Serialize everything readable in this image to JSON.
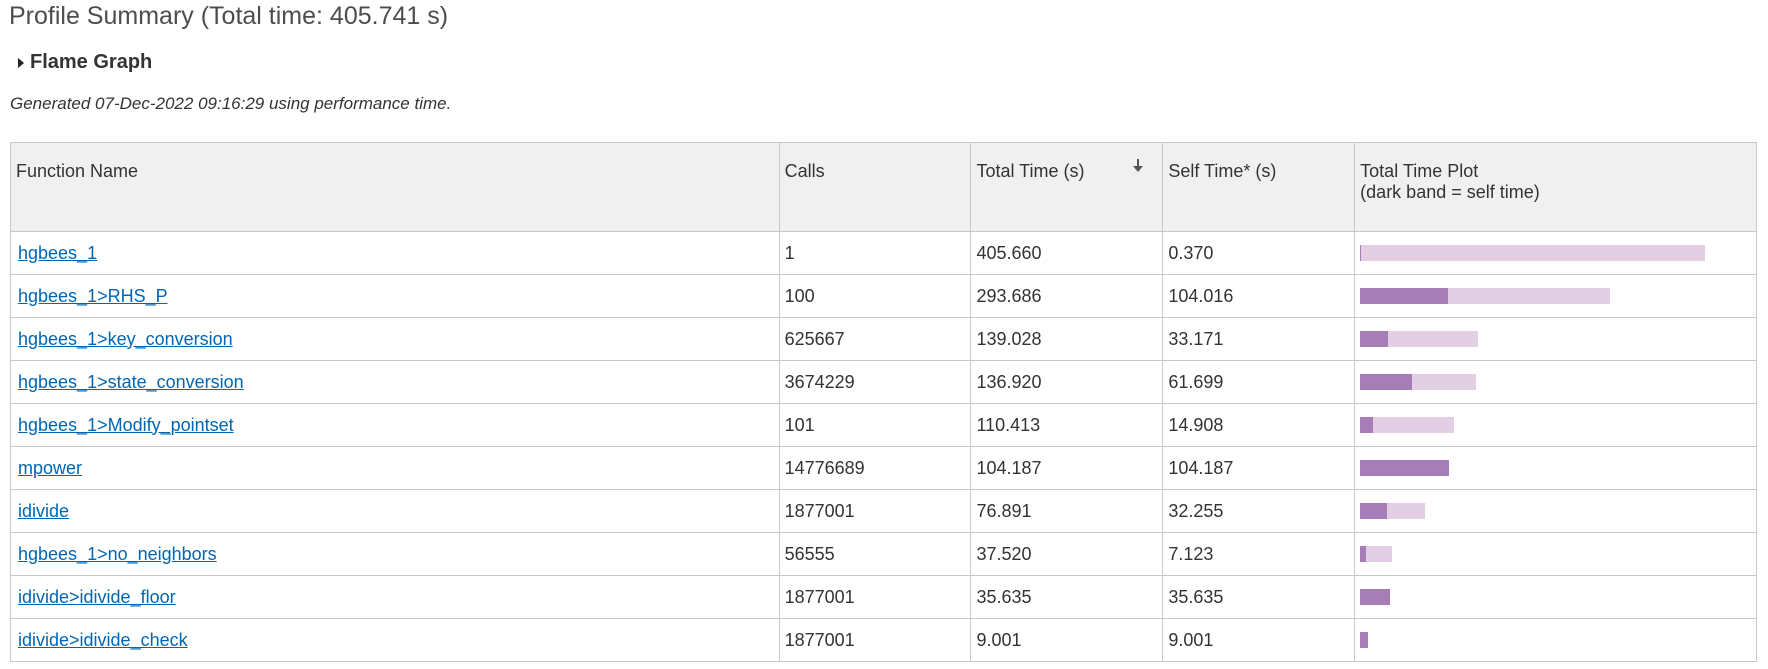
{
  "page_title": "Profile Summary (Total time: 405.741 s)",
  "flame_graph_label": "Flame Graph",
  "generated_note": "Generated 07-Dec-2022 09:16:29 using performance time.",
  "colors": {
    "link": "#0066b3",
    "self_time_bar": "#a77db8",
    "total_time_bar": "#e2cfe4",
    "header_bg": "#f0f0f0"
  },
  "table": {
    "headers": {
      "function_name": "Function Name",
      "calls": "Calls",
      "total_time": "Total Time (s)",
      "self_time": "Self Time* (s)",
      "plot_line1": "Total Time Plot",
      "plot_line2": "(dark band = self time)"
    },
    "sorted_by": "total_time",
    "sort_direction": "descending",
    "plot_scale_max": 405.741,
    "rows": [
      {
        "name": "hgbees_1",
        "calls": "1",
        "total": "405.660",
        "self": "0.370"
      },
      {
        "name": "hgbees_1>RHS_P",
        "calls": "100",
        "total": "293.686",
        "self": "104.016"
      },
      {
        "name": "hgbees_1>key_conversion",
        "calls": "625667",
        "total": "139.028",
        "self": "33.171"
      },
      {
        "name": "hgbees_1>state_conversion",
        "calls": "3674229",
        "total": "136.920",
        "self": "61.699"
      },
      {
        "name": "hgbees_1>Modify_pointset",
        "calls": "101",
        "total": "110.413",
        "self": "14.908"
      },
      {
        "name": "mpower",
        "calls": "14776689",
        "total": "104.187",
        "self": "104.187"
      },
      {
        "name": "idivide",
        "calls": "1877001",
        "total": "76.891",
        "self": "32.255"
      },
      {
        "name": "hgbees_1>no_neighbors",
        "calls": "56555",
        "total": "37.520",
        "self": "7.123"
      },
      {
        "name": "idivide>idivide_floor",
        "calls": "1877001",
        "total": "35.635",
        "self": "35.635"
      },
      {
        "name": "idivide>idivide_check",
        "calls": "1877001",
        "total": "9.001",
        "self": "9.001"
      }
    ]
  }
}
